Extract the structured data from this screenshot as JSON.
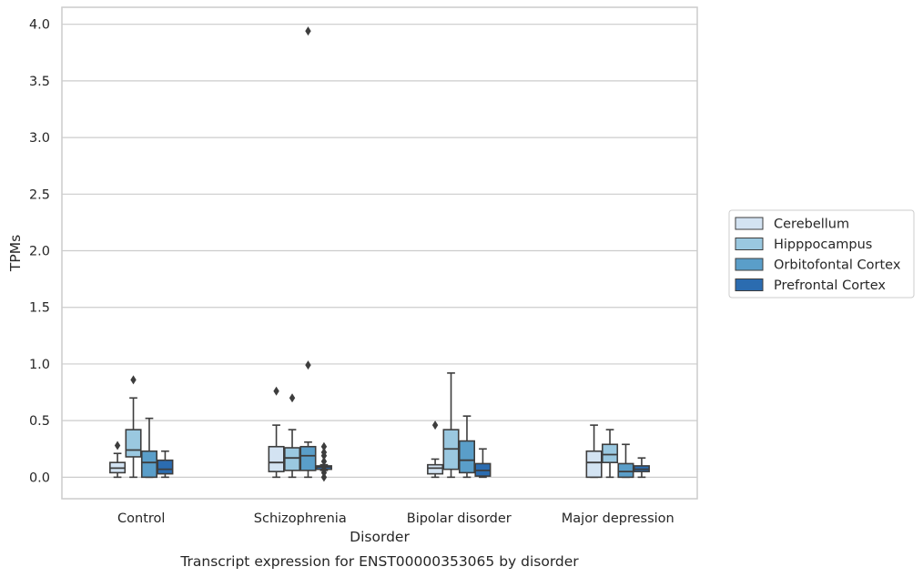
{
  "chart_data": {
    "type": "box",
    "xlabel": "Disorder",
    "ylabel": "TPMs",
    "caption": "Transcript expression for ENST00000353065 by disorder",
    "categories": [
      "Control",
      "Schizophrenia",
      "Bipolar disorder",
      "Major depression"
    ],
    "y_ticks": [
      "0.0",
      "0.5",
      "1.0",
      "1.5",
      "2.0",
      "2.5",
      "3.0",
      "3.5",
      "4.0"
    ],
    "ylim": [
      -0.19,
      4.15
    ],
    "grid": "horizontal",
    "legend_position": "right",
    "series": [
      {
        "name": "Cerebellum",
        "color": "#d3e3f2",
        "boxes": [
          {
            "whisker_low": 0.0,
            "q1": 0.04,
            "median": 0.08,
            "q3": 0.13,
            "whisker_high": 0.21,
            "outliers": [
              0.28
            ]
          },
          {
            "whisker_low": 0.0,
            "q1": 0.05,
            "median": 0.13,
            "q3": 0.27,
            "whisker_high": 0.46,
            "outliers": [
              0.76
            ]
          },
          {
            "whisker_low": 0.0,
            "q1": 0.03,
            "median": 0.08,
            "q3": 0.11,
            "whisker_high": 0.16,
            "outliers": [
              0.46
            ]
          },
          {
            "whisker_low": 0.0,
            "q1": 0.0,
            "median": 0.13,
            "q3": 0.23,
            "whisker_high": 0.46,
            "outliers": []
          }
        ]
      },
      {
        "name": "Hipppocampus",
        "color": "#9ac8e0",
        "boxes": [
          {
            "whisker_low": 0.0,
            "q1": 0.18,
            "median": 0.24,
            "q3": 0.42,
            "whisker_high": 0.7,
            "outliers": [
              0.86
            ]
          },
          {
            "whisker_low": 0.0,
            "q1": 0.06,
            "median": 0.17,
            "q3": 0.26,
            "whisker_high": 0.42,
            "outliers": [
              0.7
            ]
          },
          {
            "whisker_low": 0.0,
            "q1": 0.07,
            "median": 0.25,
            "q3": 0.42,
            "whisker_high": 0.92,
            "outliers": []
          },
          {
            "whisker_low": 0.0,
            "q1": 0.13,
            "median": 0.2,
            "q3": 0.29,
            "whisker_high": 0.42,
            "outliers": []
          }
        ]
      },
      {
        "name": "Orbitofontal Cortex",
        "color": "#5a9ec9",
        "boxes": [
          {
            "whisker_low": 0.0,
            "q1": 0.0,
            "median": 0.13,
            "q3": 0.23,
            "whisker_high": 0.52,
            "outliers": []
          },
          {
            "whisker_low": 0.0,
            "q1": 0.06,
            "median": 0.19,
            "q3": 0.27,
            "whisker_high": 0.31,
            "outliers": [
              0.99,
              3.94
            ]
          },
          {
            "whisker_low": 0.0,
            "q1": 0.04,
            "median": 0.15,
            "q3": 0.32,
            "whisker_high": 0.54,
            "outliers": []
          },
          {
            "whisker_low": 0.0,
            "q1": 0.0,
            "median": 0.05,
            "q3": 0.12,
            "whisker_high": 0.29,
            "outliers": []
          }
        ]
      },
      {
        "name": "Prefrontal Cortex",
        "color": "#2b6cb0",
        "boxes": [
          {
            "whisker_low": 0.0,
            "q1": 0.03,
            "median": 0.07,
            "q3": 0.15,
            "whisker_high": 0.23,
            "outliers": []
          },
          {
            "whisker_low": 0.06,
            "q1": 0.07,
            "median": 0.09,
            "q3": 0.1,
            "whisker_high": 0.11,
            "outliers": [
              0.0,
              0.04,
              0.07,
              0.14,
              0.19,
              0.22,
              0.27
            ]
          },
          {
            "whisker_low": 0.0,
            "q1": 0.01,
            "median": 0.06,
            "q3": 0.12,
            "whisker_high": 0.25,
            "outliers": []
          },
          {
            "whisker_low": 0.0,
            "q1": 0.05,
            "median": 0.07,
            "q3": 0.1,
            "whisker_high": 0.17,
            "outliers": []
          }
        ]
      }
    ]
  }
}
